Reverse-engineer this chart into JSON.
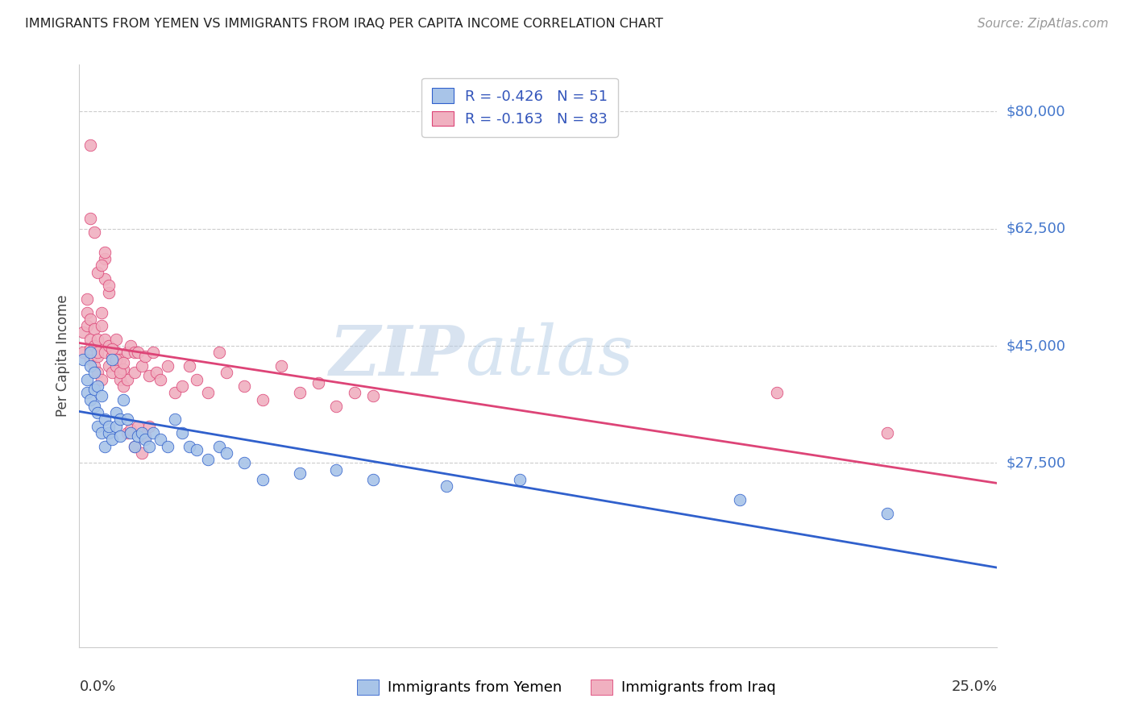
{
  "title": "IMMIGRANTS FROM YEMEN VS IMMIGRANTS FROM IRAQ PER CAPITA INCOME CORRELATION CHART",
  "source": "Source: ZipAtlas.com",
  "ylabel": "Per Capita Income",
  "xmin": 0.0,
  "xmax": 0.25,
  "ymin": 0,
  "ymax": 87000,
  "legend_text_blue": "R = -0.426   N = 51",
  "legend_text_pink": "R = -0.163   N = 83",
  "legend_label_blue": "Immigrants from Yemen",
  "legend_label_pink": "Immigrants from Iraq",
  "blue_scatter_color": "#a8c4e8",
  "pink_scatter_color": "#f0b0c0",
  "blue_line_color": "#3060cc",
  "pink_line_color": "#dd4477",
  "watermark_zip": "ZIP",
  "watermark_atlas": "atlas",
  "title_fontsize": 11.5,
  "source_fontsize": 11,
  "ytick_vals": [
    0,
    27500,
    45000,
    62500,
    80000
  ],
  "ytick_labels": [
    "$27,500",
    "$45,000",
    "$62,500",
    "$80,000"
  ],
  "yemen_x": [
    0.001,
    0.002,
    0.002,
    0.003,
    0.003,
    0.003,
    0.004,
    0.004,
    0.004,
    0.005,
    0.005,
    0.005,
    0.006,
    0.006,
    0.007,
    0.007,
    0.008,
    0.008,
    0.009,
    0.009,
    0.01,
    0.01,
    0.011,
    0.011,
    0.012,
    0.013,
    0.014,
    0.015,
    0.016,
    0.017,
    0.018,
    0.019,
    0.02,
    0.022,
    0.024,
    0.026,
    0.028,
    0.03,
    0.032,
    0.035,
    0.038,
    0.04,
    0.045,
    0.05,
    0.06,
    0.07,
    0.08,
    0.1,
    0.12,
    0.18,
    0.22
  ],
  "yemen_y": [
    43000,
    38000,
    40000,
    37000,
    42000,
    44000,
    41000,
    36000,
    38500,
    35000,
    33000,
    39000,
    32000,
    37500,
    30000,
    34000,
    32000,
    33000,
    31000,
    43000,
    35000,
    33000,
    34000,
    31500,
    37000,
    34000,
    32000,
    30000,
    31500,
    32000,
    31000,
    30000,
    32000,
    31000,
    30000,
    34000,
    32000,
    30000,
    29500,
    28000,
    30000,
    29000,
    27500,
    25000,
    26000,
    26500,
    25000,
    24000,
    25000,
    22000,
    20000
  ],
  "iraq_x": [
    0.001,
    0.001,
    0.002,
    0.002,
    0.002,
    0.003,
    0.003,
    0.003,
    0.003,
    0.004,
    0.004,
    0.004,
    0.005,
    0.005,
    0.005,
    0.005,
    0.006,
    0.006,
    0.006,
    0.007,
    0.007,
    0.007,
    0.007,
    0.008,
    0.008,
    0.008,
    0.009,
    0.009,
    0.01,
    0.01,
    0.01,
    0.011,
    0.011,
    0.012,
    0.012,
    0.013,
    0.013,
    0.014,
    0.015,
    0.015,
    0.016,
    0.017,
    0.018,
    0.019,
    0.02,
    0.021,
    0.022,
    0.024,
    0.026,
    0.028,
    0.03,
    0.032,
    0.035,
    0.038,
    0.04,
    0.045,
    0.05,
    0.055,
    0.06,
    0.065,
    0.07,
    0.075,
    0.08,
    0.003,
    0.004,
    0.005,
    0.006,
    0.007,
    0.008,
    0.009,
    0.01,
    0.011,
    0.012,
    0.013,
    0.014,
    0.015,
    0.016,
    0.017,
    0.018,
    0.019,
    0.003,
    0.19,
    0.22
  ],
  "iraq_y": [
    44000,
    47000,
    50000,
    48000,
    52000,
    43000,
    46000,
    49000,
    44500,
    42000,
    45000,
    47500,
    43500,
    41000,
    44000,
    46000,
    50000,
    48000,
    40000,
    55000,
    58000,
    44000,
    46000,
    53000,
    45000,
    42000,
    41000,
    43500,
    44000,
    46000,
    42000,
    40000,
    43000,
    41500,
    39000,
    44000,
    40000,
    45000,
    44000,
    41000,
    44000,
    42000,
    43500,
    40500,
    44000,
    41000,
    40000,
    42000,
    38000,
    39000,
    42000,
    40000,
    38000,
    44000,
    41000,
    39000,
    37000,
    42000,
    38000,
    39500,
    36000,
    38000,
    37500,
    64000,
    62000,
    56000,
    57000,
    59000,
    54000,
    44500,
    43000,
    41000,
    42500,
    32000,
    32500,
    30000,
    33000,
    29000,
    31500,
    33000,
    75000,
    38000,
    32000
  ]
}
